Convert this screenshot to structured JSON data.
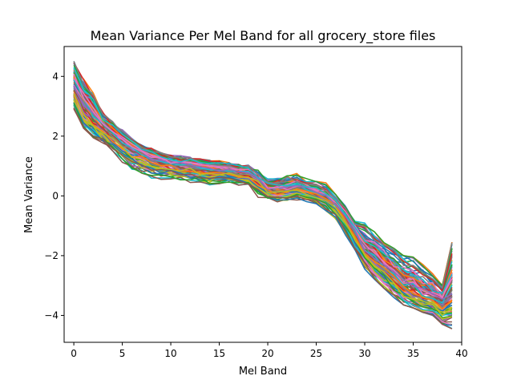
{
  "chart_data": {
    "type": "line",
    "title": "Mean Variance Per Mel Band for all grocery_store files",
    "xlabel": "Mel Band",
    "ylabel": "Mean Variance",
    "xlim": [
      -1,
      40
    ],
    "ylim": [
      -4.9,
      5.0
    ],
    "xticks": [
      0,
      5,
      10,
      15,
      20,
      25,
      30,
      35,
      40
    ],
    "yticks": [
      -4,
      -2,
      0,
      2,
      4
    ],
    "xtick_labels": [
      "0",
      "5",
      "10",
      "15",
      "20",
      "25",
      "30",
      "35",
      "40"
    ],
    "ytick_labels": [
      "−4",
      "−2",
      "0",
      "2",
      "4"
    ],
    "grid": false,
    "legend": "none",
    "x": [
      0,
      1,
      2,
      3,
      4,
      5,
      6,
      7,
      8,
      9,
      10,
      11,
      12,
      13,
      14,
      15,
      16,
      17,
      18,
      19,
      20,
      21,
      22,
      23,
      24,
      25,
      26,
      27,
      28,
      29,
      30,
      31,
      32,
      33,
      34,
      35,
      36,
      37,
      38,
      39
    ],
    "envelope": {
      "mean": [
        3.6,
        3.0,
        2.6,
        2.3,
        2.0,
        1.75,
        1.55,
        1.4,
        1.25,
        1.15,
        1.05,
        1.0,
        0.95,
        0.9,
        0.85,
        0.85,
        0.8,
        0.75,
        0.7,
        0.5,
        0.2,
        0.15,
        0.2,
        0.25,
        0.2,
        0.1,
        -0.05,
        -0.3,
        -0.7,
        -1.2,
        -1.8,
        -2.1,
        -2.4,
        -2.7,
        -3.0,
        -3.2,
        -3.35,
        -3.45,
        -3.6,
        -3.2
      ],
      "min": [
        2.9,
        2.2,
        1.9,
        1.7,
        1.45,
        1.1,
        0.8,
        0.6,
        0.55,
        0.5,
        0.5,
        0.45,
        0.4,
        0.35,
        0.3,
        0.35,
        0.35,
        0.3,
        0.25,
        -0.05,
        -0.15,
        -0.25,
        -0.2,
        -0.15,
        -0.2,
        -0.3,
        -0.5,
        -0.8,
        -1.3,
        -1.9,
        -2.45,
        -2.8,
        -3.1,
        -3.4,
        -3.65,
        -3.75,
        -3.9,
        -4.0,
        -4.3,
        -4.45
      ],
      "max": [
        4.55,
        4.0,
        3.6,
        2.9,
        2.6,
        2.35,
        2.05,
        1.8,
        1.7,
        1.55,
        1.5,
        1.5,
        1.45,
        1.4,
        1.35,
        1.35,
        1.3,
        1.25,
        1.2,
        1.0,
        0.75,
        0.8,
        0.85,
        0.85,
        0.6,
        0.55,
        0.45,
        0.05,
        -0.3,
        -0.85,
        -0.9,
        -1.2,
        -1.5,
        -1.75,
        -2.0,
        -2.05,
        -2.3,
        -2.6,
        -3.0,
        -1.55
      ]
    },
    "series_count": 100,
    "series_colors": [
      "#1f77b4",
      "#ff7f0e",
      "#2ca02c",
      "#d62728",
      "#9467bd",
      "#8c564b",
      "#e377c2",
      "#7f7f7f",
      "#bcbd22",
      "#17becf"
    ]
  }
}
